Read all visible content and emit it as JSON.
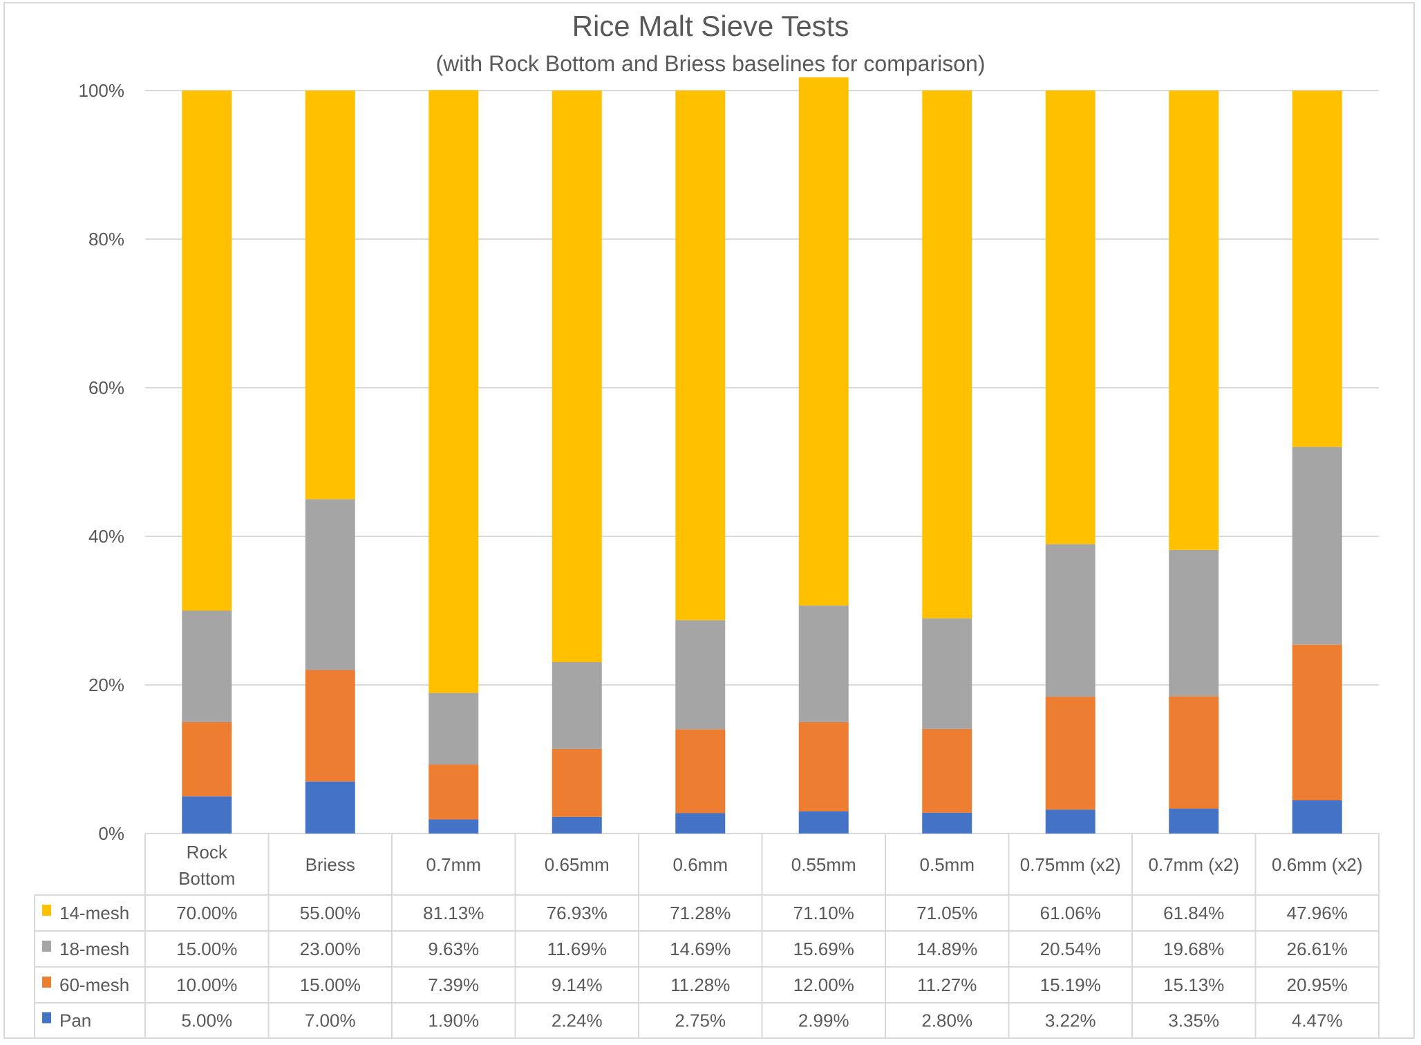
{
  "chart_data": {
    "type": "bar",
    "stacked": "percent",
    "title": "Rice Malt Sieve Tests",
    "subtitle": "(with Rock Bottom and Briess baselines for comparison)",
    "xlabel": "",
    "ylabel": "",
    "ylim": [
      0,
      100
    ],
    "yticks": [
      "0%",
      "20%",
      "40%",
      "60%",
      "80%",
      "100%"
    ],
    "grid": true,
    "legend": "data-table",
    "categories": [
      "Rock Bottom",
      "Briess",
      "0.7mm",
      "0.65mm",
      "0.6mm",
      "0.55mm",
      "0.5mm",
      "0.75mm (x2)",
      "0.7mm (x2)",
      "0.6mm (x2)"
    ],
    "series": [
      {
        "name": "14-mesh",
        "color": "#FFC000",
        "values": [
          70.0,
          55.0,
          81.13,
          76.93,
          71.28,
          71.1,
          71.05,
          61.06,
          61.84,
          47.96
        ],
        "labels": [
          "70.00%",
          "55.00%",
          "81.13%",
          "76.93%",
          "71.28%",
          "71.10%",
          "71.05%",
          "61.06%",
          "61.84%",
          "47.96%"
        ]
      },
      {
        "name": "18-mesh",
        "color": "#A5A5A5",
        "values": [
          15.0,
          23.0,
          9.63,
          11.69,
          14.69,
          15.69,
          14.89,
          20.54,
          19.68,
          26.61
        ],
        "labels": [
          "15.00%",
          "23.00%",
          "9.63%",
          "11.69%",
          "14.69%",
          "15.69%",
          "14.89%",
          "20.54%",
          "19.68%",
          "26.61%"
        ]
      },
      {
        "name": "60-mesh",
        "color": "#ED7D31",
        "values": [
          10.0,
          15.0,
          7.39,
          9.14,
          11.28,
          12.0,
          11.27,
          15.19,
          15.13,
          20.95
        ],
        "labels": [
          "10.00%",
          "15.00%",
          "7.39%",
          "9.14%",
          "11.28%",
          "12.00%",
          "11.27%",
          "15.19%",
          "15.13%",
          "20.95%"
        ]
      },
      {
        "name": "Pan",
        "color": "#4472C4",
        "values": [
          5.0,
          7.0,
          1.9,
          2.24,
          2.75,
          2.99,
          2.8,
          3.22,
          3.35,
          4.47
        ],
        "labels": [
          "5.00%",
          "7.00%",
          "1.90%",
          "2.24%",
          "2.75%",
          "2.99%",
          "2.80%",
          "3.22%",
          "3.35%",
          "4.47%"
        ]
      }
    ]
  }
}
